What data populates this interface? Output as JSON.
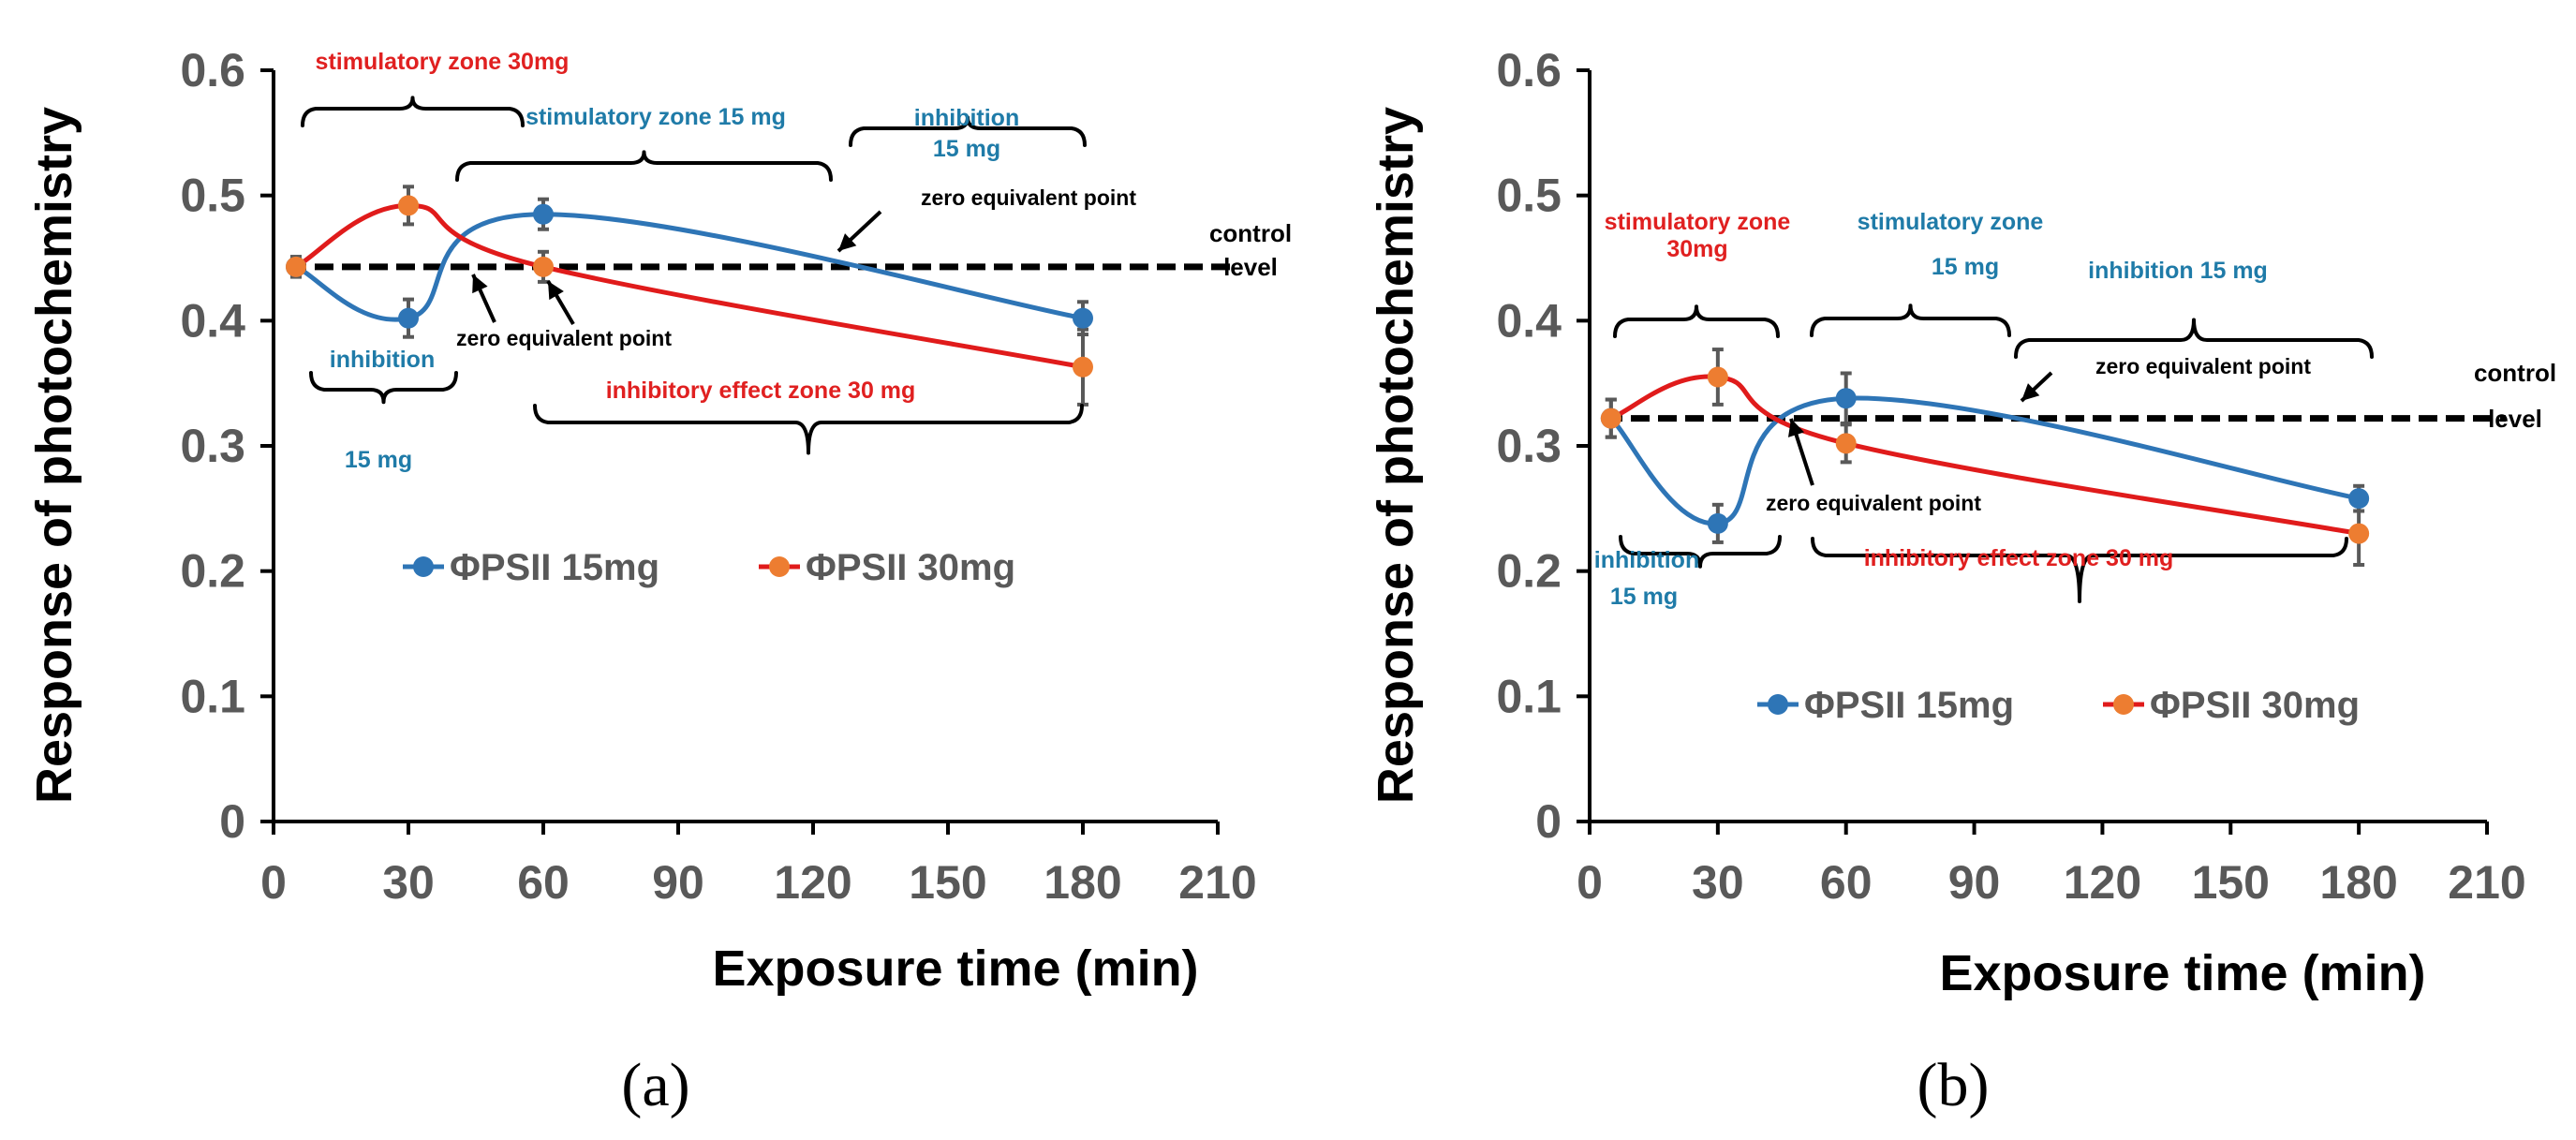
{
  "chart_data": [
    {
      "type": "line",
      "panel_label": "(a)",
      "xlabel": "Exposure time (min)",
      "ylabel": "Response of photochemistry",
      "xlim": [
        0,
        210
      ],
      "ylim": [
        0,
        0.6
      ],
      "xticks": [
        "0",
        "30",
        "60",
        "90",
        "120",
        "150",
        "180",
        "210"
      ],
      "yticks": [
        "0",
        "0.1",
        "0.2",
        "0.3",
        "0.4",
        "0.5",
        "0.6"
      ],
      "x": [
        5,
        30,
        60,
        180
      ],
      "series": [
        {
          "name": "ΦPSII 15mg",
          "color": "#2E75B6",
          "values": [
            0.443,
            0.402,
            0.485,
            0.402
          ],
          "errors": [
            0.008,
            0.015,
            0.012,
            0.013
          ]
        },
        {
          "name": "ΦPSII 30mg",
          "color": "#ED7D31",
          "values": [
            0.443,
            0.492,
            0.443,
            0.363
          ],
          "errors": [
            0.008,
            0.015,
            0.012,
            0.03
          ]
        }
      ],
      "control_level": 0.443,
      "control_label_1": "control",
      "control_label_2": "level",
      "annotations": [
        {
          "text": "stimulatory zone 30mg",
          "color": "#E02020"
        },
        {
          "text": "stimulatory zone 15 mg",
          "color": "#1F7BA8"
        },
        {
          "text": "inhibition",
          "color": "#1F7BA8"
        },
        {
          "text": "15 mg",
          "color": "#1F7BA8"
        },
        {
          "text": "inhibition",
          "color": "#1F7BA8"
        },
        {
          "text": "15 mg",
          "color": "#1F7BA8"
        },
        {
          "text": "zero equivalent point",
          "color": "#000000"
        },
        {
          "text": "zero equivalent point",
          "color": "#000000"
        },
        {
          "text": "inhibitory effect zone 30 mg",
          "color": "#E02020"
        }
      ]
    },
    {
      "type": "line",
      "panel_label": "(b)",
      "xlabel": "Exposure time (min)",
      "ylabel": "Response of photochemistry",
      "xlim": [
        0,
        210
      ],
      "ylim": [
        0,
        0.6
      ],
      "xticks": [
        "0",
        "30",
        "60",
        "90",
        "120",
        "150",
        "180",
        "210"
      ],
      "yticks": [
        "0",
        "0.1",
        "0.2",
        "0.3",
        "0.4",
        "0.5",
        "0.6"
      ],
      "x": [
        5,
        30,
        60,
        180
      ],
      "series": [
        {
          "name": "ΦPSII 15mg",
          "color": "#2E75B6",
          "values": [
            0.322,
            0.238,
            0.338,
            0.258
          ],
          "errors": [
            0.015,
            0.015,
            0.02,
            0.01
          ]
        },
        {
          "name": "ΦPSII 30mg",
          "color": "#ED7D31",
          "values": [
            0.322,
            0.355,
            0.302,
            0.23
          ],
          "errors": [
            0.015,
            0.022,
            0.015,
            0.025
          ]
        }
      ],
      "control_level": 0.322,
      "control_label_1": "control",
      "control_label_2": "level",
      "annotations": [
        {
          "text": "stimulatory zone",
          "color": "#E02020"
        },
        {
          "text": "30mg",
          "color": "#E02020"
        },
        {
          "text": "stimulatory zone",
          "color": "#1F7BA8"
        },
        {
          "text": "15 mg",
          "color": "#1F7BA8"
        },
        {
          "text": "inhibition 15 mg",
          "color": "#1F7BA8"
        },
        {
          "text": "inhibition",
          "color": "#1F7BA8"
        },
        {
          "text": "15 mg",
          "color": "#1F7BA8"
        },
        {
          "text": "zero equivalent point",
          "color": "#000000"
        },
        {
          "text": "zero equivalent point",
          "color": "#000000"
        },
        {
          "text": "inhibitory effect zone 30 mg",
          "color": "#E02020"
        }
      ]
    }
  ]
}
